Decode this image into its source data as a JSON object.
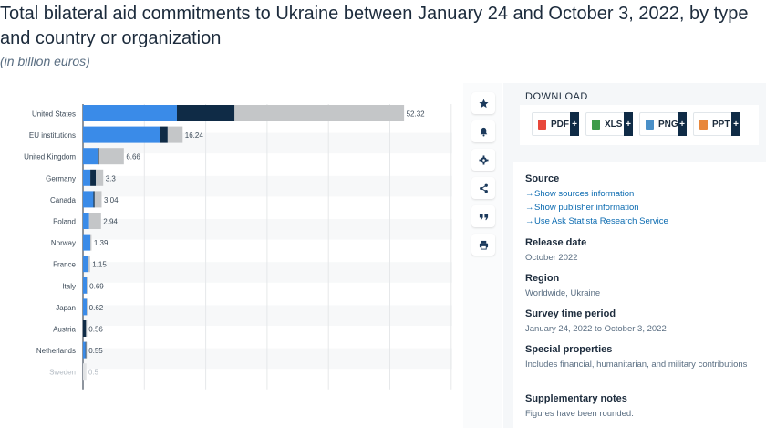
{
  "header": {
    "title": "Total bilateral aid commitments to Ukraine between January 24 and October 3, 2022, by type and country or organization",
    "subtitle": "(in billion euros)"
  },
  "colors": {
    "financial": "#3a8be8",
    "military": "#0f2b46",
    "humanitarian": "#c4c6c8",
    "faded_bar": "#e0e2e4",
    "link": "#0a6ab0"
  },
  "chart_data": {
    "type": "bar",
    "orientation": "horizontal",
    "stacked": true,
    "categories": [
      "United States",
      "EU institutions",
      "United Kingdom",
      "Germany",
      "Canada",
      "Poland",
      "Norway",
      "France",
      "Italy",
      "Japan",
      "Austria",
      "Netherlands",
      "Sweden"
    ],
    "totals": [
      52.32,
      16.24,
      6.66,
      3.3,
      3.04,
      2.94,
      1.39,
      1.15,
      0.69,
      0.62,
      0.56,
      0.55,
      0.5
    ],
    "total_labels": [
      "52.32",
      "16.24",
      "6.66",
      "3.3",
      "3.04",
      "2.94",
      "1.39",
      "1.15",
      "0.69",
      "0.62",
      "0.56",
      "0.55",
      "0.5"
    ],
    "series": [
      {
        "color_key": "financial",
        "values": [
          15.3,
          12.6,
          2.5,
          1.2,
          1.7,
          1.0,
          1.2,
          0.8,
          0.6,
          0.6,
          0.0,
          0.4,
          0.4
        ]
      },
      {
        "color_key": "military",
        "values": [
          9.4,
          1.2,
          0.1,
          0.9,
          0.2,
          0.0,
          0.0,
          0.0,
          0.0,
          0.0,
          0.5,
          0.1,
          0.0
        ]
      },
      {
        "color_key": "humanitarian",
        "values": [
          27.62,
          2.44,
          4.06,
          1.2,
          1.14,
          1.94,
          0.19,
          0.35,
          0.09,
          0.02,
          0.06,
          0.05,
          0.1
        ]
      }
    ],
    "xlim": [
      0,
      60
    ],
    "grid": true,
    "faded_categories": [
      "Sweden"
    ]
  },
  "toolbar": {
    "buttons": [
      {
        "name": "favorite-button",
        "icon": "star-icon"
      },
      {
        "name": "notification-button",
        "icon": "bell-icon"
      },
      {
        "name": "settings-button",
        "icon": "gear-icon"
      },
      {
        "name": "share-button",
        "icon": "share-icon"
      },
      {
        "name": "cite-button",
        "icon": "quote-icon"
      },
      {
        "name": "print-button",
        "icon": "print-icon"
      }
    ]
  },
  "download": {
    "title": "DOWNLOAD",
    "buttons": [
      {
        "label": "PDF",
        "icon": "pdf-file-icon",
        "color": "#e8473b"
      },
      {
        "label": "XLS",
        "icon": "xls-file-icon",
        "color": "#3d9b4a"
      },
      {
        "label": "PNG",
        "icon": "png-file-icon",
        "color": "#4a90c8"
      },
      {
        "label": "PPT",
        "icon": "ppt-file-icon",
        "color": "#e8873b"
      }
    ],
    "plus": "+"
  },
  "info": {
    "source": {
      "heading": "Source",
      "links": [
        "Show sources information",
        "Show publisher information",
        "Use Ask Statista Research Service"
      ]
    },
    "release": {
      "heading": "Release date",
      "value": "October 2022"
    },
    "region": {
      "heading": "Region",
      "value": "Worldwide, Ukraine"
    },
    "period": {
      "heading": "Survey time period",
      "value": "January 24, 2022 to October 3, 2022"
    },
    "special": {
      "heading": "Special properties",
      "value": "Includes financial, humanitarian, and military contributions"
    },
    "notes": {
      "heading": "Supplementary notes",
      "value": "Figures have been rounded."
    }
  }
}
